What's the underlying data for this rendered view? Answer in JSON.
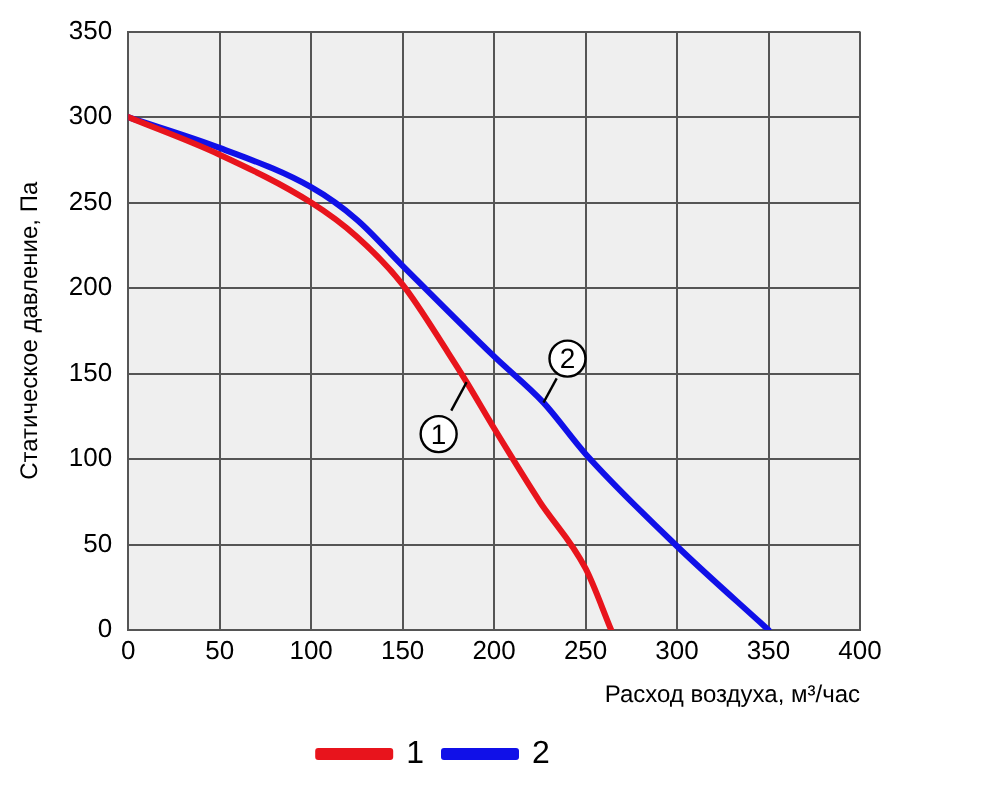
{
  "chart_data": {
    "type": "line",
    "xlabel": "Расход воздуха, м³/час",
    "ylabel": "Статическое давление, Па",
    "xlim": [
      0,
      400
    ],
    "xticks": [
      0,
      50,
      100,
      150,
      200,
      250,
      300,
      350,
      400
    ],
    "ylim": [
      0,
      350
    ],
    "yticks": [
      0,
      50,
      100,
      150,
      200,
      250,
      300,
      350
    ],
    "grid": true,
    "legend": "bottom",
    "marker": "none",
    "line_style": "solid",
    "series": [
      {
        "name": "1",
        "color": "#e8141c",
        "x": [
          0,
          50,
          100,
          125,
          150,
          175,
          185,
          200,
          225,
          250,
          264
        ],
        "values": [
          300,
          278,
          250,
          230,
          202,
          162,
          145,
          118,
          75,
          36,
          0
        ]
      },
      {
        "name": "2",
        "color": "#1010e8",
        "x": [
          0,
          50,
          100,
          125,
          150,
          200,
          227,
          250,
          300,
          350
        ],
        "values": [
          300,
          282,
          259,
          240,
          213,
          160,
          133,
          103,
          49,
          0
        ]
      }
    ],
    "annotations": [
      {
        "text": "1",
        "x": 185,
        "y": 145
      },
      {
        "text": "2",
        "x": 227,
        "y": 133
      }
    ]
  }
}
